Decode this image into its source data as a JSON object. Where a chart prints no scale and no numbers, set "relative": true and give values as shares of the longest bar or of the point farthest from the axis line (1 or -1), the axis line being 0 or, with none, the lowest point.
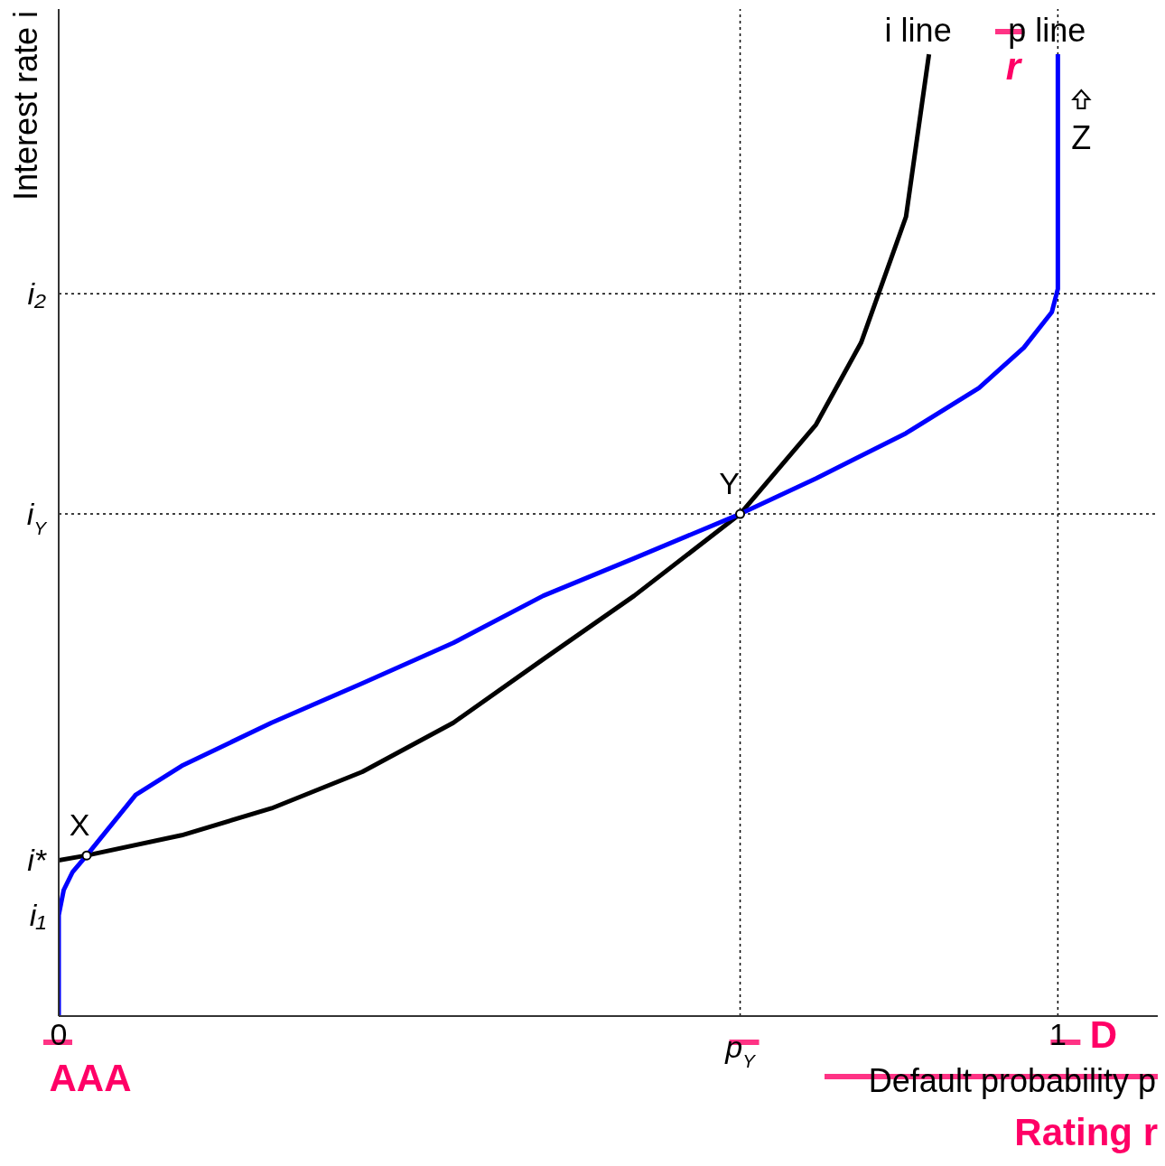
{
  "chart_data": {
    "type": "line",
    "relative": true,
    "ylabel": "Interest rate i",
    "xlabel": "Default probability p",
    "xlim": [
      0,
      1.1
    ],
    "xticks": [
      0,
      1
    ],
    "line_style": "solid",
    "marker": "none",
    "series": [
      {
        "name": "i line",
        "color": "#000000",
        "x": [
          0,
          0.028,
          0.123,
          0.213,
          0.304,
          0.395,
          0.485,
          0.576,
          0.682,
          0.758,
          0.803,
          0.848,
          0.871
        ],
        "values": [
          0.162,
          0.167,
          0.188,
          0.216,
          0.254,
          0.305,
          0.371,
          0.437,
          0.522,
          0.615,
          0.7,
          0.831,
          1
        ]
      },
      {
        "name": "p line",
        "color": "#0000ff",
        "x": [
          0,
          0,
          0.005,
          0.014,
          0.028,
          0.077,
          0.123,
          0.213,
          0.304,
          0.395,
          0.485,
          0.576,
          0.682,
          0.758,
          0.848,
          0.921,
          0.966,
          0.994,
          1,
          1
        ],
        "values": [
          0,
          0.105,
          0.131,
          0.15,
          0.167,
          0.23,
          0.26,
          0.305,
          0.346,
          0.388,
          0.437,
          0.476,
          0.522,
          0.559,
          0.606,
          0.653,
          0.695,
          0.732,
          0.756,
          1
        ]
      },
      {
        "type": "scatter",
        "marker": "circle",
        "color": "#ffffff",
        "x": [
          0.028,
          0.682
        ],
        "values": [
          0.167,
          0.522
        ]
      }
    ],
    "ref_lines": [
      {
        "axis": "y",
        "value": 0.522,
        "label": "i$_{Y}$",
        "color": "#000000",
        "line_style": "dotted"
      },
      {
        "axis": "y",
        "value": 0.751,
        "label": "i₂",
        "color": "#000000",
        "line_style": "dotted"
      },
      {
        "axis": "x",
        "value": 0.682,
        "label": "p$_{Y}$",
        "color": "#000000",
        "line_style": "dotted"
      },
      {
        "axis": "x",
        "value": 1,
        "label": null,
        "color": "#000000",
        "line_style": "dotted"
      }
    ],
    "annotations": [
      {
        "text": "X",
        "x": 0.028,
        "y": 0.167
      },
      {
        "text": "Y",
        "x": 0.682,
        "y": 0.522
      },
      {
        "text": "i*",
        "x": 0,
        "y": 0.162
      },
      {
        "text": "i₁",
        "x": 0,
        "y": 0.105
      },
      {
        "text": "Z",
        "x": 1,
        "y": 0.915
      },
      "AAA",
      "D",
      "Rating r",
      "r"
    ]
  }
}
